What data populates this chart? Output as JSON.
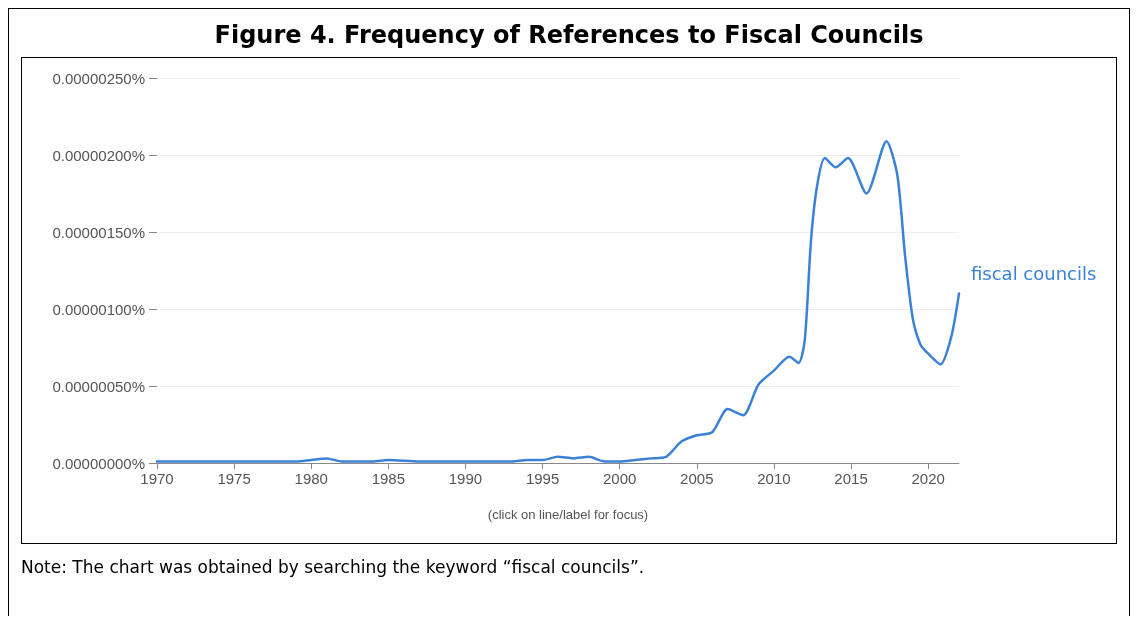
{
  "chart_data": {
    "type": "line",
    "title": "Figure 4. Frequency of References to Fiscal Councils",
    "annotations": [
      "(click on line/label for focus)",
      "Note: The chart was obtained by searching the keyword “fiscal councils”."
    ],
    "x": [
      1970,
      1972,
      1974,
      1976,
      1978,
      1979,
      1980,
      1981,
      1982,
      1984,
      1985,
      1987,
      1989,
      1991,
      1993,
      1994,
      1995,
      1996,
      1997,
      1998,
      1999,
      2000,
      2001,
      2002,
      2003,
      2004,
      2005,
      2006,
      2007,
      2008,
      2009,
      2010,
      2011,
      2011.6,
      2012,
      2012.4,
      2012.8,
      2013.3,
      2014,
      2014.8,
      2016,
      2017.3,
      2018,
      2018.5,
      2019,
      2019.5,
      2020,
      2020.8,
      2021.5,
      2022
    ],
    "series": [
      {
        "name": "fiscal councils",
        "color": "#3b82d6",
        "values": [
          1e-08,
          1e-08,
          1e-08,
          1e-08,
          1e-08,
          1e-08,
          2e-08,
          3e-08,
          1e-08,
          1e-08,
          2e-08,
          1e-08,
          1e-08,
          1e-08,
          1e-08,
          2e-08,
          2e-08,
          4e-08,
          3e-08,
          4e-08,
          1e-08,
          1e-08,
          2e-08,
          3e-08,
          4e-08,
          1.4e-07,
          1.8e-07,
          2e-07,
          3.5e-07,
          3.1e-07,
          5.1e-07,
          6e-07,
          6.9e-07,
          6.5e-07,
          8e-07,
          1.44e-06,
          1.8e-06,
          1.98e-06,
          1.92e-06,
          1.98e-06,
          1.75e-06,
          2.09e-06,
          1.87e-06,
          1.35e-06,
          9.4e-07,
          7.7e-07,
          7.1e-07,
          6.4e-07,
          8.2e-07,
          1.1e-06
        ]
      }
    ],
    "xlim": [
      1970,
      2022
    ],
    "xticks": [
      1970,
      1975,
      1980,
      1985,
      1990,
      1995,
      2000,
      2005,
      2010,
      2015,
      2020
    ],
    "ylim": [
      0,
      2.5e-06
    ],
    "yticks": [
      {
        "value": 0,
        "label": "0.00000000%"
      },
      {
        "value": 5e-07,
        "label": "0.00000050%"
      },
      {
        "value": 1e-06,
        "label": "0.00000100%"
      },
      {
        "value": 1.5e-06,
        "label": "0.00000150%"
      },
      {
        "value": 2e-06,
        "label": "0.00000200%"
      },
      {
        "value": 2.5e-06,
        "label": "0.00000250%"
      }
    ],
    "grid": "y",
    "legend": false,
    "marker": "none",
    "line_style": "solid"
  }
}
